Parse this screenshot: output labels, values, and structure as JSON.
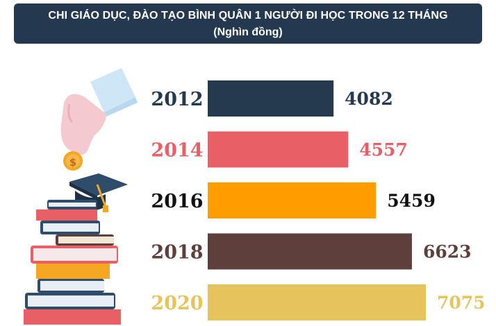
{
  "header": {
    "title": "CHI GIÁO DỤC, ĐÀO TẠO BÌNH QUÂN 1 NGƯỜI ĐI HỌC TRONG 12 THÁNG",
    "subtitle": "(Nghìn đồng)"
  },
  "illustration": {
    "coin_symbol": "$"
  },
  "chart_data": {
    "type": "bar",
    "orientation": "horizontal",
    "categories": [
      "2012",
      "2014",
      "2016",
      "2018",
      "2020"
    ],
    "values": [
      4082,
      4557,
      5459,
      6623,
      7075
    ],
    "bar_colors": [
      "#25394f",
      "#e85f66",
      "#ff9d00",
      "#5e3f3b",
      "#e7c35e"
    ],
    "label_colors": [
      "#25394f",
      "#e85f66",
      "#111111",
      "#5e3f3b",
      "#e7c35e"
    ],
    "xlim": [
      0,
      7075
    ],
    "grid": false,
    "legend": "none"
  }
}
